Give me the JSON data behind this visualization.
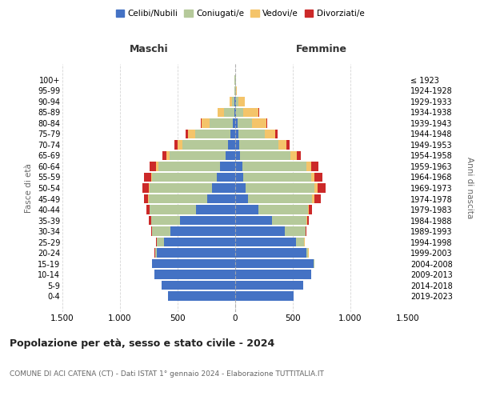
{
  "age_groups": [
    "0-4",
    "5-9",
    "10-14",
    "15-19",
    "20-24",
    "25-29",
    "30-34",
    "35-39",
    "40-44",
    "45-49",
    "50-54",
    "55-59",
    "60-64",
    "65-69",
    "70-74",
    "75-79",
    "80-84",
    "85-89",
    "90-94",
    "95-99",
    "100+"
  ],
  "birth_years": [
    "2019-2023",
    "2014-2018",
    "2009-2013",
    "2004-2008",
    "1999-2003",
    "1994-1998",
    "1989-1993",
    "1984-1988",
    "1979-1983",
    "1974-1978",
    "1969-1973",
    "1964-1968",
    "1959-1963",
    "1954-1958",
    "1949-1953",
    "1944-1948",
    "1939-1943",
    "1934-1938",
    "1929-1933",
    "1924-1928",
    "≤ 1923"
  ],
  "colors": {
    "celibe": "#4472C4",
    "coniugato": "#B5C99A",
    "vedovo": "#F4C46A",
    "divorziato": "#CC2929"
  },
  "maschi": {
    "celibe": [
      580,
      640,
      700,
      720,
      680,
      620,
      560,
      480,
      340,
      240,
      200,
      160,
      130,
      80,
      60,
      40,
      20,
      10,
      5,
      2,
      2
    ],
    "coniugato": [
      0,
      0,
      0,
      5,
      15,
      60,
      160,
      250,
      400,
      510,
      540,
      560,
      540,
      490,
      400,
      310,
      200,
      90,
      25,
      5,
      3
    ],
    "vedovo": [
      0,
      0,
      0,
      0,
      1,
      2,
      2,
      2,
      3,
      5,
      8,
      10,
      20,
      30,
      40,
      60,
      70,
      50,
      20,
      3,
      1
    ],
    "divorziato": [
      0,
      0,
      0,
      0,
      2,
      5,
      10,
      20,
      25,
      40,
      55,
      60,
      50,
      30,
      30,
      20,
      8,
      5,
      2,
      0,
      0
    ]
  },
  "femmine": {
    "nubile": [
      510,
      590,
      660,
      680,
      620,
      530,
      430,
      320,
      200,
      110,
      90,
      70,
      60,
      40,
      35,
      25,
      18,
      10,
      5,
      2,
      2
    ],
    "coniugata": [
      0,
      0,
      0,
      5,
      15,
      70,
      180,
      300,
      430,
      560,
      600,
      590,
      560,
      440,
      340,
      230,
      130,
      60,
      20,
      5,
      3
    ],
    "vedova": [
      0,
      0,
      0,
      0,
      1,
      2,
      3,
      5,
      8,
      15,
      25,
      30,
      40,
      55,
      70,
      90,
      120,
      130,
      55,
      10,
      3
    ],
    "divorziata": [
      0,
      0,
      0,
      0,
      1,
      3,
      8,
      15,
      30,
      55,
      70,
      70,
      60,
      35,
      30,
      20,
      8,
      5,
      2,
      0,
      0
    ]
  },
  "title": "Popolazione per età, sesso e stato civile - 2024",
  "subtitle": "COMUNE DI ACI CATENA (CT) - Dati ISTAT 1° gennaio 2024 - Elaborazione TUTTITALIA.IT",
  "label_maschi": "Maschi",
  "label_femmine": "Femmine",
  "ylabel_left": "Fasce di età",
  "ylabel_right": "Anni di nascita",
  "xlim": 1500,
  "xtick_vals": [
    -1500,
    -1000,
    -500,
    0,
    500,
    1000,
    1500
  ],
  "xtick_labels": [
    "1.500",
    "1.000",
    "500",
    "0",
    "500",
    "1.000",
    "1.500"
  ],
  "legend_labels": [
    "Celibi/Nubili",
    "Coniugati/e",
    "Vedovi/e",
    "Divorziati/e"
  ],
  "background_color": "#ffffff",
  "grid_color": "#cccccc"
}
